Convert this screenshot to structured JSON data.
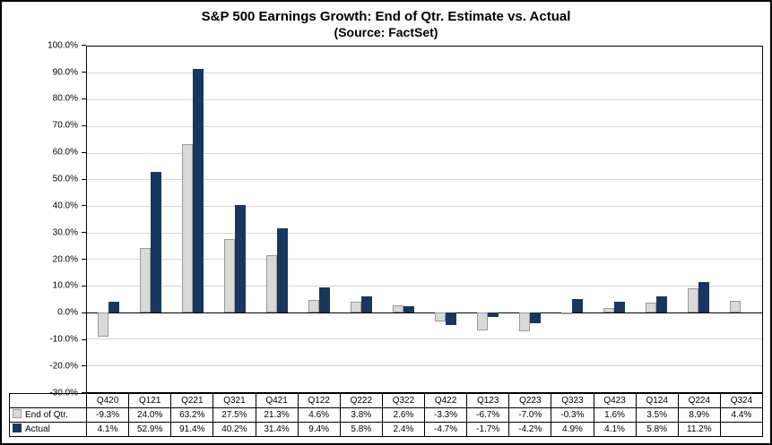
{
  "title": "S&P 500 Earnings Growth:  End of Qtr. Estimate vs. Actual",
  "subtitle": "(Source: FactSet)",
  "chart_data": {
    "type": "bar",
    "title": "S&P 500 Earnings Growth:  End of Qtr. Estimate vs. Actual",
    "subtitle": "(Source: FactSet)",
    "categories": [
      "Q420",
      "Q121",
      "Q221",
      "Q321",
      "Q421",
      "Q122",
      "Q222",
      "Q322",
      "Q422",
      "Q123",
      "Q223",
      "Q323",
      "Q423",
      "Q124",
      "Q224",
      "Q324"
    ],
    "series": [
      {
        "name": "End of Qtr.",
        "color": "#d9d9d9",
        "border_color": "#9a9a9a",
        "values": [
          -9.3,
          24.0,
          63.2,
          27.5,
          21.3,
          4.6,
          3.8,
          2.6,
          -3.3,
          -6.7,
          -7.0,
          -0.3,
          1.6,
          3.5,
          8.9,
          4.4
        ],
        "labels": [
          "-9.3%",
          "24.0%",
          "63.2%",
          "27.5%",
          "21.3%",
          "4.6%",
          "3.8%",
          "2.6%",
          "-3.3%",
          "-6.7%",
          "-7.0%",
          "-0.3%",
          "1.6%",
          "3.5%",
          "8.9%",
          "4.4%"
        ]
      },
      {
        "name": "Actual",
        "color": "#17375e",
        "border_color": null,
        "values": [
          4.1,
          52.9,
          91.4,
          40.2,
          31.4,
          9.4,
          5.8,
          2.4,
          -4.7,
          -1.7,
          -4.2,
          4.9,
          4.1,
          5.8,
          11.2,
          null
        ],
        "labels": [
          "4.1%",
          "52.9%",
          "91.4%",
          "40.2%",
          "31.4%",
          "9.4%",
          "5.8%",
          "2.4%",
          "-4.7%",
          "-1.7%",
          "-4.2%",
          "4.9%",
          "4.1%",
          "5.8%",
          "11.2%",
          ""
        ]
      }
    ],
    "ylim": [
      -30,
      100
    ],
    "ytick_step": 10,
    "ytick_labels": [
      "100.0%",
      "90.0%",
      "80.0%",
      "70.0%",
      "60.0%",
      "50.0%",
      "40.0%",
      "30.0%",
      "20.0%",
      "10.0%",
      "0.0%",
      "-10.0%",
      "-20.0%",
      "-30.0%"
    ],
    "grid": true,
    "legend_position": "table-left"
  }
}
